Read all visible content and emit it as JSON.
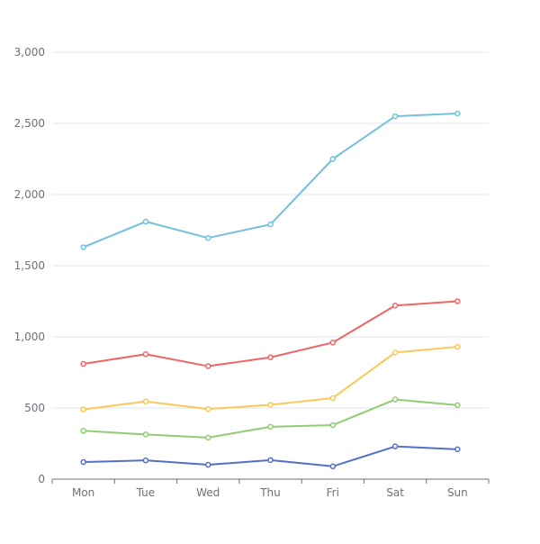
{
  "chart_data": {
    "type": "line",
    "categories": [
      "Mon",
      "Tue",
      "Wed",
      "Thu",
      "Fri",
      "Sat",
      "Sun"
    ],
    "ylim": [
      0,
      3000
    ],
    "yticks": [
      "0",
      "500",
      "1,000",
      "1,500",
      "2,000",
      "2,500",
      "3,000"
    ],
    "ytick_values": [
      0,
      500,
      1000,
      1500,
      2000,
      2500,
      3000
    ],
    "grid": true,
    "series": [
      {
        "values": [
          120,
          132,
          101,
          134,
          90,
          230,
          210
        ],
        "color": "#5470c6"
      },
      {
        "values": [
          340,
          314,
          292,
          368,
          380,
          560,
          520
        ],
        "color": "#91cc75"
      },
      {
        "values": [
          490,
          546,
          493,
          522,
          570,
          890,
          930
        ],
        "color": "#fac858"
      },
      {
        "values": [
          810,
          878,
          794,
          856,
          960,
          1220,
          1250
        ],
        "color": "#ee6666"
      },
      {
        "values": [
          1630,
          1810,
          1695,
          1790,
          2250,
          2550,
          2570
        ],
        "color": "#73c0de"
      }
    ]
  }
}
